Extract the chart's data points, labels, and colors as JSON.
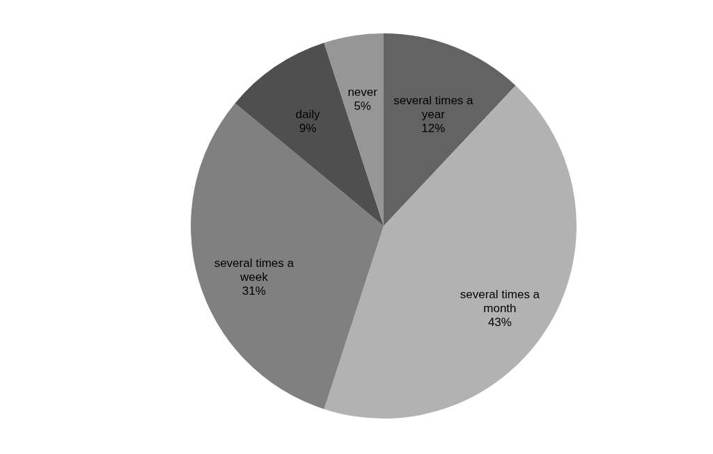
{
  "chart_data": {
    "type": "pie",
    "categories": [
      "several times a year",
      "several times a month",
      "several times a week",
      "daily",
      "never"
    ],
    "values": [
      12,
      43,
      31,
      9,
      5
    ],
    "value_labels": [
      "12%",
      "43%",
      "31%",
      "9%",
      "5%"
    ],
    "colors": [
      "#636363",
      "#b2b2b2",
      "#808080",
      "#4f4f4f",
      "#969696"
    ]
  }
}
